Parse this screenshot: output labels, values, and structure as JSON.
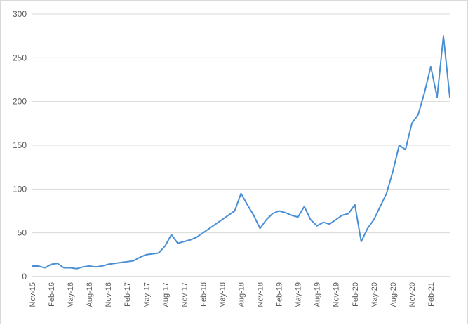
{
  "chart_data": {
    "type": "line",
    "title": "",
    "xlabel": "",
    "ylabel": "",
    "ylim": [
      0,
      300
    ],
    "yticks": [
      0,
      50,
      100,
      150,
      200,
      250,
      300
    ],
    "grid": true,
    "legend": "none",
    "x_tick_labels": [
      "Nov-15",
      "Feb-16",
      "May-16",
      "Aug-16",
      "Nov-16",
      "Feb-17",
      "May-17",
      "Aug-17",
      "Nov-17",
      "Feb-18",
      "May-18",
      "Aug-18",
      "Nov-18",
      "Feb-19",
      "May-19",
      "Aug-19",
      "Nov-19",
      "Feb-20",
      "May-20",
      "Aug-20",
      "Nov-20",
      "Feb-21"
    ],
    "series": [
      {
        "name": "",
        "color": "#4a8fd4",
        "x": [
          "Nov-15",
          "Dec-15",
          "Jan-16",
          "Feb-16",
          "Mar-16",
          "Apr-16",
          "May-16",
          "Jun-16",
          "Jul-16",
          "Aug-16",
          "Sep-16",
          "Oct-16",
          "Nov-16",
          "Dec-16",
          "Jan-17",
          "Feb-17",
          "Mar-17",
          "Apr-17",
          "May-17",
          "Jun-17",
          "Jul-17",
          "Aug-17",
          "Sep-17",
          "Oct-17",
          "Nov-17",
          "Dec-17",
          "Jan-18",
          "Feb-18",
          "Mar-18",
          "Apr-18",
          "May-18",
          "Jun-18",
          "Jul-18",
          "Aug-18",
          "Sep-18",
          "Oct-18",
          "Nov-18",
          "Dec-18",
          "Jan-19",
          "Feb-19",
          "Mar-19",
          "Apr-19",
          "May-19",
          "Jun-19",
          "Jul-19",
          "Aug-19",
          "Sep-19",
          "Oct-19",
          "Nov-19",
          "Dec-19",
          "Jan-20",
          "Feb-20",
          "Mar-20",
          "Apr-20",
          "May-20",
          "Jun-20",
          "Jul-20",
          "Aug-20",
          "Sep-20",
          "Oct-20",
          "Nov-20",
          "Dec-20",
          "Jan-21",
          "Feb-21",
          "Mar-21",
          "Apr-21",
          "May-21"
        ],
        "values": [
          12,
          12,
          10,
          14,
          15,
          10,
          10,
          9,
          11,
          12,
          11,
          12,
          14,
          15,
          16,
          17,
          18,
          22,
          25,
          26,
          27,
          35,
          48,
          38,
          40,
          42,
          45,
          50,
          55,
          60,
          65,
          70,
          75,
          95,
          82,
          70,
          55,
          65,
          72,
          75,
          73,
          70,
          68,
          80,
          65,
          58,
          62,
          60,
          65,
          70,
          72,
          82,
          40,
          55,
          65,
          80,
          95,
          120,
          150,
          145,
          175,
          185,
          210,
          240,
          205,
          275,
          205
        ]
      }
    ]
  }
}
